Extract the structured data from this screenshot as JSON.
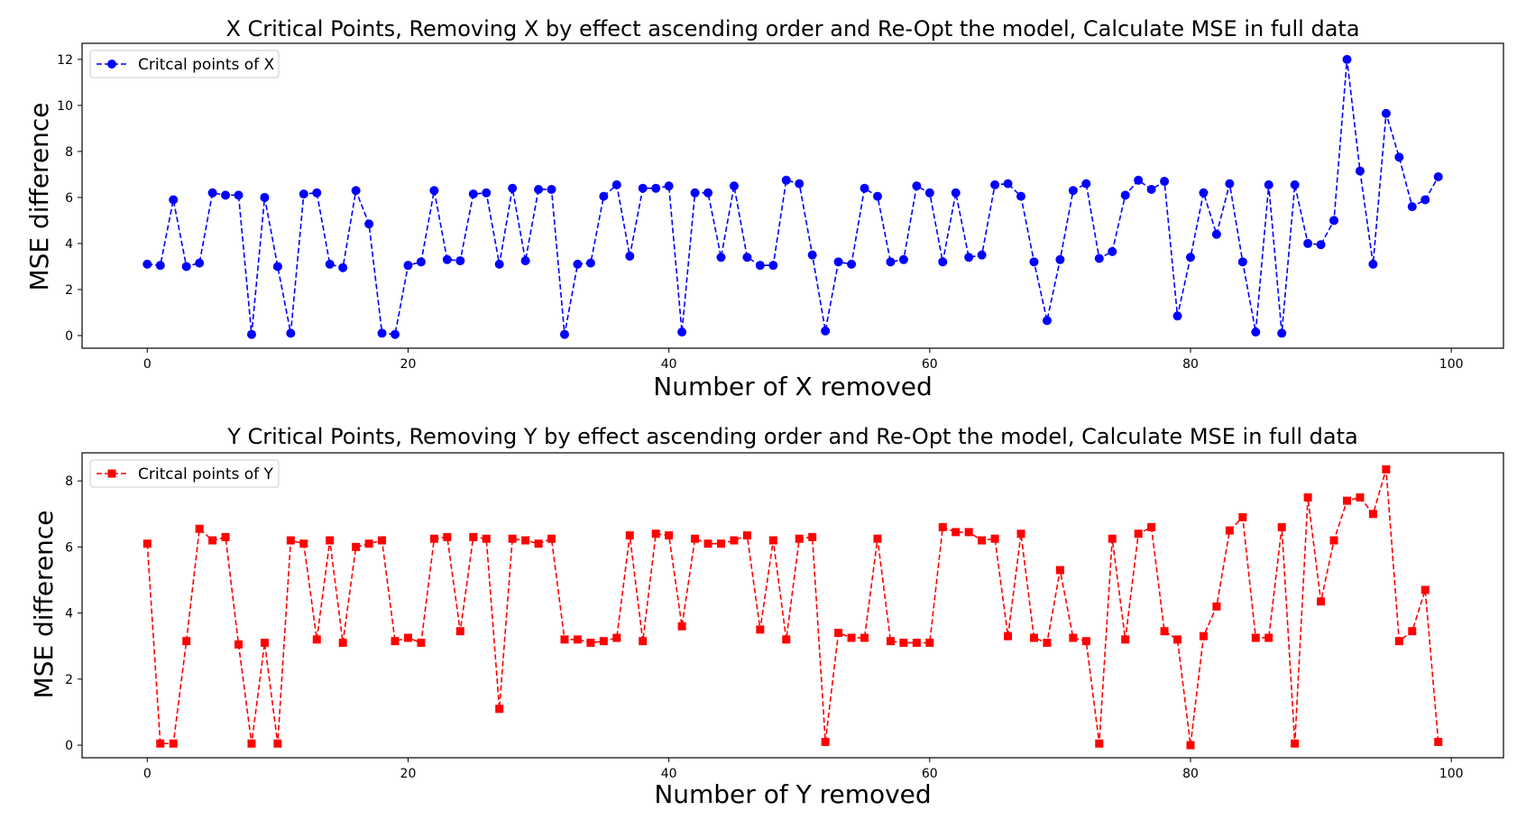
{
  "chart_data": [
    {
      "type": "line",
      "title": "X Critical Points, Removing X by effect ascending order and Re-Opt the model, Calculate MSE in full data",
      "xlabel": "Number of X removed",
      "ylabel": "MSE difference",
      "xlim": [
        -5,
        104
      ],
      "ylim": [
        -0.55,
        12.7
      ],
      "xticks": [
        0,
        20,
        40,
        60,
        80,
        100
      ],
      "yticks": [
        0,
        2,
        4,
        6,
        8,
        10,
        12
      ],
      "grid": false,
      "legend_position": "top-left",
      "series": [
        {
          "name": "Critcal points of X",
          "color": "#0000ff",
          "marker": "circle",
          "line_style": "dashed",
          "x": [
            0,
            1,
            2,
            3,
            4,
            5,
            6,
            7,
            8,
            9,
            10,
            11,
            12,
            13,
            14,
            15,
            16,
            17,
            18,
            19,
            20,
            21,
            22,
            23,
            24,
            25,
            26,
            27,
            28,
            29,
            30,
            31,
            32,
            33,
            34,
            35,
            36,
            37,
            38,
            39,
            40,
            41,
            42,
            43,
            44,
            45,
            46,
            47,
            48,
            49,
            50,
            51,
            52,
            53,
            54,
            55,
            56,
            57,
            58,
            59,
            60,
            61,
            62,
            63,
            64,
            65,
            66,
            67,
            68,
            69,
            70,
            71,
            72,
            73,
            74,
            75,
            76,
            77,
            78,
            79,
            80,
            81,
            82,
            83,
            84,
            85,
            86,
            87,
            88,
            89,
            90,
            91,
            92,
            93,
            94,
            95,
            96,
            97,
            98,
            99
          ],
          "values": [
            3.1,
            3.05,
            5.9,
            3.0,
            3.15,
            6.2,
            6.1,
            6.1,
            0.05,
            6.0,
            3.0,
            0.1,
            6.15,
            6.2,
            3.1,
            2.95,
            6.3,
            4.85,
            0.1,
            0.05,
            3.05,
            3.2,
            6.3,
            3.3,
            3.25,
            6.15,
            6.2,
            3.1,
            6.4,
            3.25,
            6.35,
            6.35,
            0.05,
            3.1,
            3.15,
            6.05,
            6.55,
            3.45,
            6.4,
            6.4,
            6.5,
            0.15,
            6.2,
            6.2,
            3.4,
            6.5,
            3.4,
            3.05,
            3.05,
            6.75,
            6.6,
            3.5,
            0.2,
            3.2,
            3.1,
            6.4,
            6.05,
            3.2,
            3.3,
            6.5,
            6.2,
            3.2,
            6.2,
            3.4,
            3.5,
            6.55,
            6.6,
            6.05,
            3.2,
            0.65,
            3.3,
            6.3,
            6.6,
            3.35,
            3.65,
            6.1,
            6.75,
            6.35,
            6.7,
            0.85,
            3.4,
            6.2,
            4.4,
            6.6,
            3.2,
            0.15,
            6.55,
            0.1,
            6.55,
            4.0,
            3.95,
            5.0,
            12.0,
            7.15,
            3.1,
            9.65,
            7.75,
            5.6,
            5.9,
            6.9
          ]
        }
      ]
    },
    {
      "type": "line",
      "title": "Y Critical Points, Removing Y by effect ascending order and Re-Opt the model, Calculate MSE in full data",
      "xlabel": "Number of Y removed",
      "ylabel": "MSE difference",
      "xlim": [
        -5,
        104
      ],
      "ylim": [
        -0.38,
        8.85
      ],
      "xticks": [
        0,
        20,
        40,
        60,
        80,
        100
      ],
      "yticks": [
        0,
        2,
        4,
        6,
        8
      ],
      "grid": false,
      "legend_position": "top-left",
      "series": [
        {
          "name": "Critcal points of Y",
          "color": "#ff0000",
          "marker": "square",
          "line_style": "dashed",
          "x": [
            0,
            1,
            2,
            3,
            4,
            5,
            6,
            7,
            8,
            9,
            10,
            11,
            12,
            13,
            14,
            15,
            16,
            17,
            18,
            19,
            20,
            21,
            22,
            23,
            24,
            25,
            26,
            27,
            28,
            29,
            30,
            31,
            32,
            33,
            34,
            35,
            36,
            37,
            38,
            39,
            40,
            41,
            42,
            43,
            44,
            45,
            46,
            47,
            48,
            49,
            50,
            51,
            52,
            53,
            54,
            55,
            56,
            57,
            58,
            59,
            60,
            61,
            62,
            63,
            64,
            65,
            66,
            67,
            68,
            69,
            70,
            71,
            72,
            73,
            74,
            75,
            76,
            77,
            78,
            79,
            80,
            81,
            82,
            83,
            84,
            85,
            86,
            87,
            88,
            89,
            90,
            91,
            92,
            93,
            94,
            95,
            96,
            97,
            98,
            99
          ],
          "values": [
            6.1,
            0.05,
            0.05,
            3.15,
            6.55,
            6.2,
            6.3,
            3.05,
            0.05,
            3.1,
            0.05,
            6.2,
            6.1,
            3.2,
            6.2,
            3.1,
            6.0,
            6.1,
            6.2,
            3.15,
            3.25,
            3.1,
            6.25,
            6.3,
            3.45,
            6.3,
            6.25,
            1.1,
            6.25,
            6.2,
            6.1,
            6.25,
            3.2,
            3.2,
            3.1,
            3.15,
            3.25,
            6.35,
            3.15,
            6.4,
            6.35,
            3.6,
            6.25,
            6.1,
            6.1,
            6.2,
            6.35,
            3.5,
            6.2,
            3.2,
            6.25,
            6.3,
            0.1,
            3.4,
            3.25,
            3.25,
            6.25,
            3.15,
            3.1,
            3.1,
            3.1,
            6.6,
            6.45,
            6.45,
            6.2,
            6.25,
            3.3,
            6.4,
            3.25,
            3.1,
            5.3,
            3.25,
            3.15,
            0.05,
            6.25,
            3.2,
            6.4,
            6.6,
            3.45,
            3.2,
            0.0,
            3.3,
            4.2,
            6.5,
            6.9,
            3.25,
            3.25,
            6.6,
            0.05,
            7.5,
            4.35,
            6.2,
            7.4,
            7.5,
            7.0,
            8.35,
            3.15,
            3.45,
            4.7,
            0.1
          ]
        }
      ]
    }
  ]
}
